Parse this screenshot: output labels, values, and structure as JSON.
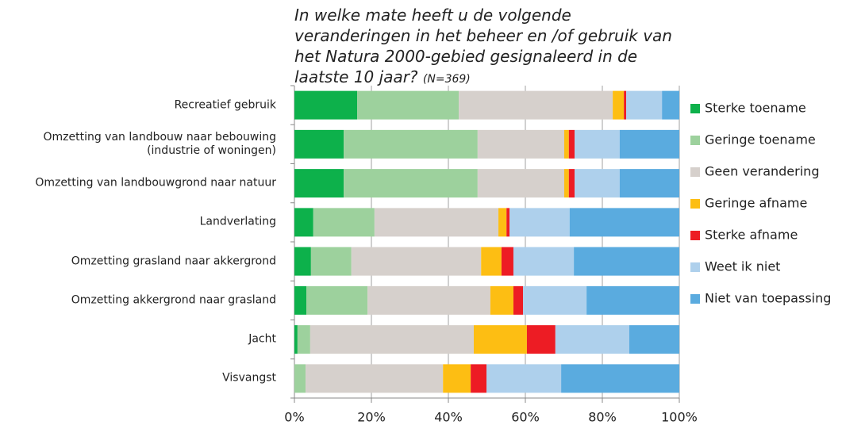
{
  "chart_data": {
    "type": "stacked_barh",
    "title": "In welke mate heeft u de volgende veranderingen in het beheer en /of gebruik van het Natura 2000-gebied gesignaleerd in de laatste 10 jaar?",
    "note": "(N=369)",
    "categories": [
      "Recreatief gebruik",
      "Omzetting van landbouw naar bebouwing\n(industrie of woningen)",
      "Omzetting van landbouwgrond naar natuur",
      "Landverlating",
      "Omzetting grasland naar akkergrond",
      "Omzetting akkergrond naar grasland",
      "Jacht",
      "Visvangst"
    ],
    "series": [
      {
        "name": "Sterke toename",
        "color": "#0db14b",
        "values": [
          16.3,
          12.8,
          12.8,
          4.9,
          4.3,
          3.1,
          0.8,
          0
        ]
      },
      {
        "name": "Geringe toename",
        "color": "#9dd19d",
        "values": [
          26.4,
          34.8,
          34.8,
          15.9,
          10.5,
          15.9,
          3.3,
          2.9
        ]
      },
      {
        "name": "Geen verandering",
        "color": "#d6d0cc",
        "values": [
          40.0,
          22.5,
          22.5,
          32.2,
          33.7,
          31.9,
          42.5,
          35.7
        ]
      },
      {
        "name": "Geringe afname",
        "color": "#fdbe13",
        "values": [
          2.9,
          1.2,
          1.2,
          2.1,
          5.3,
          6.0,
          13.8,
          7.2
        ]
      },
      {
        "name": "Sterke afname",
        "color": "#ed1c24",
        "values": [
          0.6,
          1.5,
          1.5,
          0.8,
          3.1,
          2.5,
          7.4,
          4.1
        ]
      },
      {
        "name": "Weet ik niet",
        "color": "#aed0ec",
        "values": [
          9.3,
          11.7,
          11.7,
          15.6,
          15.7,
          16.5,
          19.2,
          19.4
        ]
      },
      {
        "name": "Niet van toepassing",
        "color": "#5aabdf",
        "values": [
          4.5,
          15.5,
          15.5,
          28.5,
          27.4,
          24.1,
          13.0,
          30.7
        ]
      }
    ],
    "xlim": [
      0,
      100
    ],
    "xticks": [
      {
        "value": 0,
        "label": "0%"
      },
      {
        "value": 20,
        "label": "20%"
      },
      {
        "value": 40,
        "label": "40%"
      },
      {
        "value": 60,
        "label": "60%"
      },
      {
        "value": 80,
        "label": "80%"
      },
      {
        "value": 100,
        "label": "100%"
      }
    ],
    "grid": true,
    "legend": "right"
  }
}
